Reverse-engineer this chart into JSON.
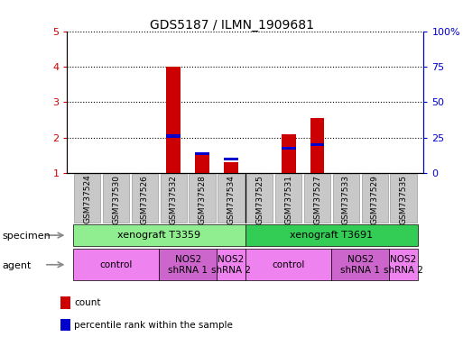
{
  "title": "GDS5187 / ILMN_1909681",
  "samples": [
    "GSM737524",
    "GSM737530",
    "GSM737526",
    "GSM737532",
    "GSM737528",
    "GSM737534",
    "GSM737525",
    "GSM737531",
    "GSM737527",
    "GSM737533",
    "GSM737529",
    "GSM737535"
  ],
  "count_values": [
    1.0,
    1.0,
    1.0,
    4.0,
    1.55,
    1.3,
    1.0,
    2.1,
    2.55,
    1.0,
    1.0,
    1.0
  ],
  "percentile_values": [
    null,
    null,
    null,
    2.0,
    1.5,
    1.35,
    null,
    1.65,
    1.75,
    null,
    null,
    null
  ],
  "ylim_left": [
    1,
    5
  ],
  "ylim_right": [
    0,
    100
  ],
  "yticks_left": [
    1,
    2,
    3,
    4,
    5
  ],
  "yticks_right": [
    0,
    25,
    50,
    75,
    100
  ],
  "ytick_labels_left": [
    "1",
    "2",
    "3",
    "4",
    "5"
  ],
  "ytick_labels_right": [
    "0",
    "25",
    "50",
    "75",
    "100%"
  ],
  "specimen_groups": [
    {
      "label": "xenograft T3359",
      "start": 0,
      "end": 6,
      "color": "#90EE90"
    },
    {
      "label": "xenograft T3691",
      "start": 6,
      "end": 12,
      "color": "#33CC55"
    }
  ],
  "agent_groups": [
    {
      "label": "control",
      "start": 0,
      "end": 3,
      "color": "#EE82EE"
    },
    {
      "label": "NOS2\nshRNA 1",
      "start": 3,
      "end": 5,
      "color": "#CC66CC"
    },
    {
      "label": "NOS2\nshRNA 2",
      "start": 5,
      "end": 6,
      "color": "#EE82EE"
    },
    {
      "label": "control",
      "start": 6,
      "end": 9,
      "color": "#EE82EE"
    },
    {
      "label": "NOS2\nshRNA 1",
      "start": 9,
      "end": 11,
      "color": "#CC66CC"
    },
    {
      "label": "NOS2\nshRNA 2",
      "start": 11,
      "end": 12,
      "color": "#EE82EE"
    }
  ],
  "bar_color_count": "#CC0000",
  "bar_color_percentile": "#0000CC",
  "bar_width": 0.5,
  "separator_positions": [
    6
  ],
  "legend_items": [
    {
      "color": "#CC0000",
      "label": "count"
    },
    {
      "color": "#0000CC",
      "label": "percentile rank within the sample"
    }
  ],
  "left_label_color": "#CC0000",
  "right_label_color": "#0000CC",
  "specimen_label": "specimen",
  "agent_label": "agent",
  "xtick_bg_color": "#C8C8C8",
  "blue_bar_height": 0.09
}
